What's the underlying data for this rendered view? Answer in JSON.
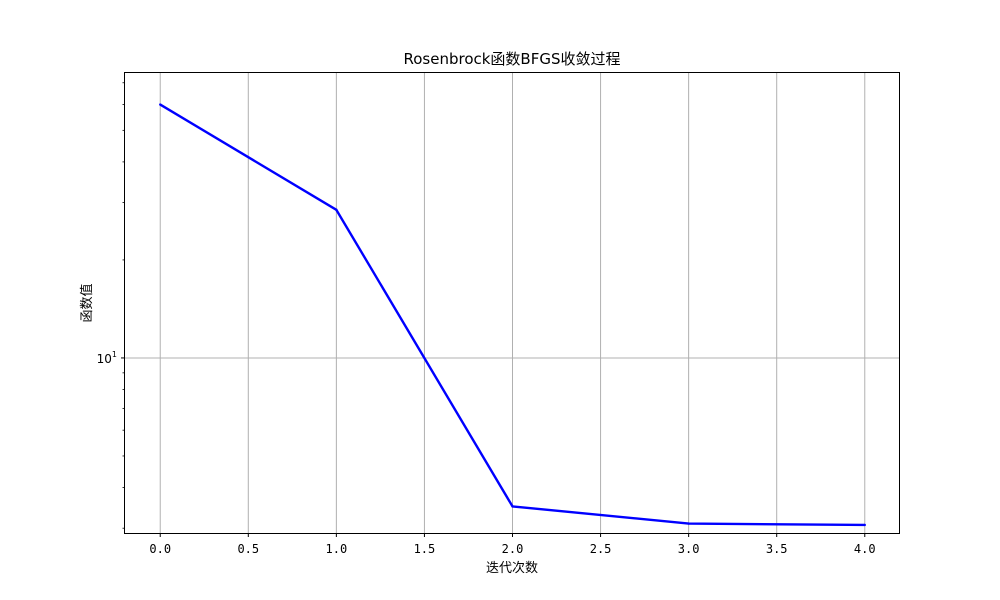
{
  "chart_data": {
    "type": "line",
    "title": "Rosenbrock函数BFGS收敛过程",
    "xlabel": "迭代次数",
    "ylabel": "函数值",
    "yscale": "log",
    "xlim": [
      -0.2,
      4.2
    ],
    "ylim": [
      2.9,
      75
    ],
    "grid": true,
    "x_ticks": [
      0.0,
      0.5,
      1.0,
      1.5,
      2.0,
      2.5,
      3.0,
      3.5,
      4.0
    ],
    "x_tick_labels": [
      "0.0",
      "0.5",
      "1.0",
      "1.5",
      "2.0",
      "2.5",
      "3.0",
      "3.5",
      "4.0"
    ],
    "y_major_ticks": [
      10
    ],
    "y_tick_label": {
      "base": "10",
      "exponent": "1"
    },
    "y_minor_ticks": [
      3,
      4,
      5,
      6,
      7,
      8,
      9,
      20,
      30,
      40,
      50,
      60,
      70
    ],
    "series": [
      {
        "color": "#0000ff",
        "x": [
          0,
          1,
          2,
          3,
          4
        ],
        "y": [
          60,
          28.5,
          3.5,
          3.1,
          3.07
        ]
      }
    ]
  }
}
